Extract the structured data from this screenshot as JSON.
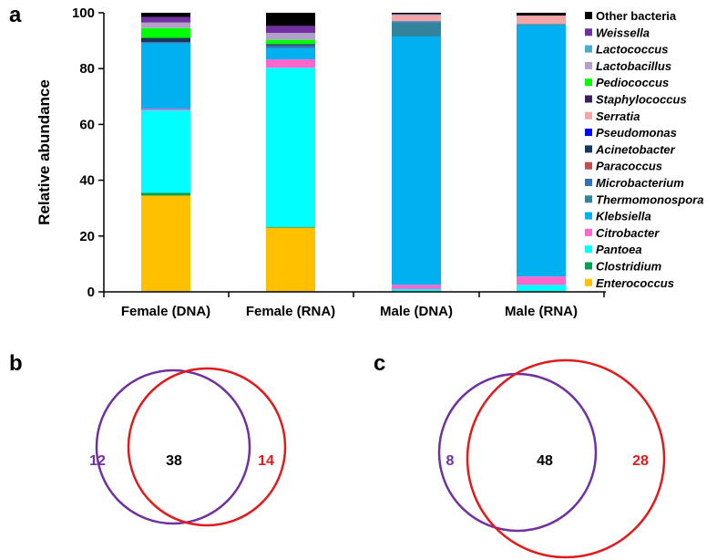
{
  "panels": {
    "a": "a",
    "b": "b",
    "c": "c"
  },
  "chart_data": [
    {
      "type": "bar",
      "stacked": true,
      "xlabel": "",
      "ylabel": "Relative abundance",
      "ylim": [
        0,
        100
      ],
      "yticks": [
        "0",
        "20",
        "40",
        "60",
        "80",
        "100"
      ],
      "categories": [
        "Female (DNA)",
        "Female (RNA)",
        "Male (DNA)",
        "Male (RNA)"
      ],
      "legend_position": "right",
      "series": [
        {
          "name": "Enterococcus",
          "italic": true,
          "color": "#FFC000",
          "values": [
            34.5,
            23,
            0,
            0
          ]
        },
        {
          "name": "Clostridium",
          "italic": true,
          "color": "#00A050",
          "values": [
            1,
            0.3,
            0,
            0
          ]
        },
        {
          "name": "Pantoea",
          "italic": true,
          "color": "#00FFFF",
          "values": [
            29.5,
            57,
            1,
            2.5
          ]
        },
        {
          "name": "Citrobacter",
          "italic": true,
          "color": "#FF66CC",
          "values": [
            0.5,
            3,
            1.5,
            3
          ]
        },
        {
          "name": "Klebsiella",
          "italic": true,
          "color": "#00B0F0",
          "values": [
            23.5,
            4,
            89,
            90
          ]
        },
        {
          "name": "Thermomonospora",
          "italic": true,
          "color": "#31849B",
          "values": [
            0,
            0,
            5,
            0.5
          ]
        },
        {
          "name": "Microbacterium",
          "italic": true,
          "color": "#2E75B6",
          "values": [
            0.5,
            1,
            0.5,
            0
          ]
        },
        {
          "name": "Paracoccus",
          "italic": true,
          "color": "#C0504D",
          "values": [
            0,
            0,
            0,
            0
          ]
        },
        {
          "name": "Acinetobacter",
          "italic": true,
          "color": "#17375E",
          "values": [
            1.5,
            0.5,
            0,
            0
          ]
        },
        {
          "name": "Pseudomonas",
          "italic": true,
          "color": "#0000FF",
          "values": [
            0,
            0,
            0,
            0
          ]
        },
        {
          "name": "Serratia",
          "italic": true,
          "color": "#F4A6A6",
          "values": [
            0,
            0,
            2,
            3
          ]
        },
        {
          "name": "Staphylococcus",
          "italic": true,
          "color": "#3F1F5F",
          "values": [
            0,
            0,
            0,
            0
          ]
        },
        {
          "name": "Pediococcus",
          "italic": true,
          "color": "#00FF00",
          "values": [
            3.5,
            1.5,
            0,
            0
          ]
        },
        {
          "name": "Lactobacillus",
          "italic": true,
          "color": "#B1A0C7",
          "values": [
            2,
            2.5,
            0.5,
            0
          ]
        },
        {
          "name": "Lactococcus",
          "italic": true,
          "color": "#4BACC6",
          "values": [
            0,
            0,
            0,
            0
          ]
        },
        {
          "name": "Weissella",
          "italic": true,
          "color": "#7030A0",
          "values": [
            2,
            2.5,
            0,
            0
          ]
        },
        {
          "name": "Other bacteria",
          "italic": false,
          "color": "#000000",
          "values": [
            1.5,
            4.7,
            0.5,
            1
          ]
        }
      ]
    },
    {
      "type": "venn",
      "panel": "b",
      "sets": [
        {
          "name": "set-1",
          "color": "#7030A0"
        },
        {
          "name": "set-2",
          "color": "#E31A1C"
        }
      ],
      "left_only": "12",
      "overlap": "38",
      "right_only": "14"
    },
    {
      "type": "venn",
      "panel": "c",
      "sets": [
        {
          "name": "set-1",
          "color": "#7030A0"
        },
        {
          "name": "set-2",
          "color": "#E31A1C"
        }
      ],
      "left_only": "8",
      "overlap": "48",
      "right_only": "28"
    }
  ]
}
